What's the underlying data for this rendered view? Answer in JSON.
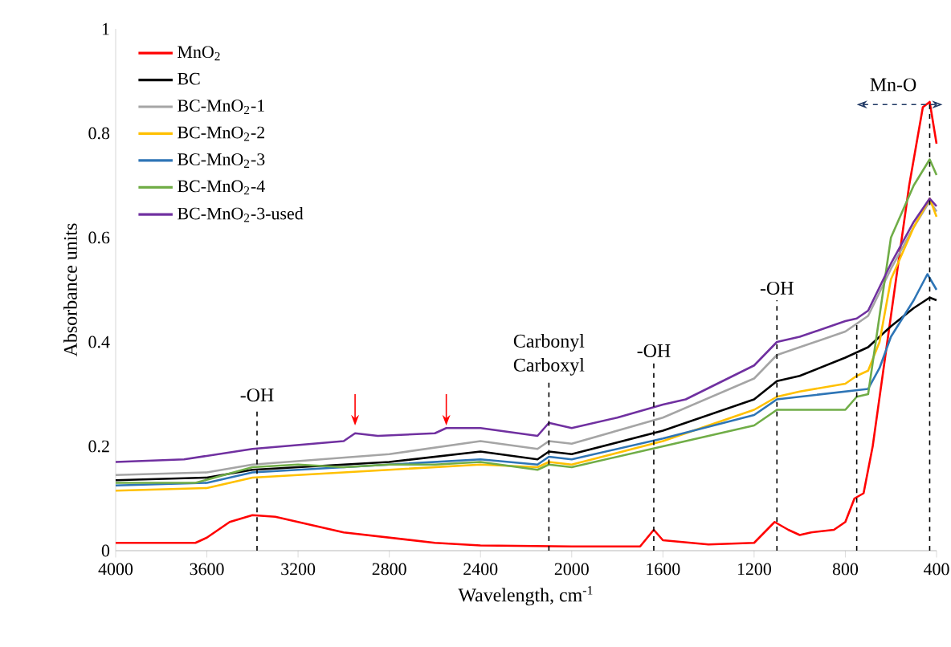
{
  "chart_data": {
    "type": "line",
    "xlabel": "Wavelength, cm$^{-1}$",
    "ylabel": "Absorbance units",
    "xlim": [
      4000,
      400
    ],
    "ylim": [
      0,
      1
    ],
    "xticks": [
      4000,
      3600,
      3200,
      2800,
      2400,
      2000,
      1600,
      1200,
      800,
      400
    ],
    "yticks": [
      0,
      0.2,
      0.4,
      0.6,
      0.8,
      1
    ],
    "legend": "top left",
    "marker": "none",
    "line_style": "solid",
    "grid": false,
    "series": [
      {
        "name": "MnO$_{2}$",
        "color": "#ff0000",
        "x": [
          4000,
          3650,
          3600,
          3500,
          3400,
          3300,
          3200,
          3000,
          2800,
          2600,
          2400,
          2000,
          1700,
          1640,
          1600,
          1400,
          1200,
          1110,
          1050,
          1000,
          950,
          850,
          800,
          760,
          720,
          680,
          600,
          520,
          460,
          430,
          400
        ],
        "values": [
          0.015,
          0.015,
          0.025,
          0.055,
          0.068,
          0.065,
          0.055,
          0.035,
          0.025,
          0.015,
          0.01,
          0.008,
          0.008,
          0.04,
          0.02,
          0.012,
          0.015,
          0.055,
          0.04,
          0.03,
          0.035,
          0.04,
          0.055,
          0.1,
          0.11,
          0.2,
          0.45,
          0.7,
          0.85,
          0.86,
          0.78
        ]
      },
      {
        "name": "BC",
        "color": "#000000",
        "x": [
          4000,
          3600,
          3400,
          2800,
          2400,
          2150,
          2100,
          2000,
          1600,
          1200,
          1100,
          1000,
          800,
          700,
          600,
          500,
          430,
          400
        ],
        "values": [
          0.135,
          0.14,
          0.155,
          0.17,
          0.19,
          0.175,
          0.19,
          0.185,
          0.23,
          0.29,
          0.325,
          0.335,
          0.37,
          0.39,
          0.43,
          0.465,
          0.485,
          0.48
        ]
      },
      {
        "name": "BC-MnO$_{2}$-1",
        "color": "#a5a5a5",
        "x": [
          4000,
          3600,
          3400,
          2800,
          2400,
          2150,
          2100,
          2000,
          1600,
          1200,
          1100,
          1000,
          800,
          700,
          600,
          500,
          430,
          400
        ],
        "values": [
          0.145,
          0.15,
          0.165,
          0.185,
          0.21,
          0.195,
          0.21,
          0.205,
          0.255,
          0.33,
          0.375,
          0.39,
          0.42,
          0.45,
          0.54,
          0.62,
          0.67,
          0.65
        ]
      },
      {
        "name": "BC-MnO$_{2}$-2",
        "color": "#ffc000",
        "x": [
          4000,
          3600,
          3400,
          2800,
          2400,
          2150,
          2100,
          2000,
          1600,
          1200,
          1100,
          1000,
          800,
          750,
          700,
          650,
          600,
          500,
          430,
          400
        ],
        "values": [
          0.115,
          0.12,
          0.14,
          0.155,
          0.165,
          0.16,
          0.17,
          0.165,
          0.21,
          0.27,
          0.295,
          0.305,
          0.32,
          0.335,
          0.345,
          0.4,
          0.52,
          0.62,
          0.675,
          0.64
        ]
      },
      {
        "name": "BC-MnO$_{2}$-3",
        "color": "#2e75b6",
        "x": [
          4000,
          3600,
          3400,
          2800,
          2400,
          2150,
          2100,
          2000,
          1600,
          1200,
          1100,
          1000,
          800,
          700,
          650,
          600,
          500,
          440,
          400
        ],
        "values": [
          0.125,
          0.13,
          0.15,
          0.165,
          0.175,
          0.165,
          0.18,
          0.175,
          0.215,
          0.26,
          0.29,
          0.295,
          0.305,
          0.31,
          0.35,
          0.41,
          0.48,
          0.53,
          0.5
        ]
      },
      {
        "name": "BC-MnO$_{2}$-4",
        "color": "#70ad47",
        "x": [
          4000,
          3650,
          3400,
          3200,
          3000,
          2800,
          2600,
          2400,
          2150,
          2100,
          2000,
          1600,
          1200,
          1100,
          1000,
          800,
          750,
          700,
          650,
          600,
          500,
          430,
          400
        ],
        "values": [
          0.13,
          0.13,
          0.16,
          0.165,
          0.16,
          0.165,
          0.165,
          0.17,
          0.155,
          0.165,
          0.16,
          0.2,
          0.24,
          0.27,
          0.27,
          0.27,
          0.295,
          0.3,
          0.45,
          0.6,
          0.7,
          0.75,
          0.72
        ]
      },
      {
        "name": "BC-MnO$_{2}$-3-used",
        "color": "#7030a0",
        "x": [
          4000,
          3700,
          3400,
          3000,
          2950,
          2850,
          2600,
          2550,
          2400,
          2150,
          2100,
          2000,
          1800,
          1600,
          1500,
          1200,
          1100,
          1000,
          800,
          750,
          700,
          600,
          500,
          430,
          400
        ],
        "values": [
          0.17,
          0.175,
          0.195,
          0.21,
          0.225,
          0.22,
          0.225,
          0.235,
          0.235,
          0.22,
          0.245,
          0.235,
          0.255,
          0.28,
          0.29,
          0.355,
          0.4,
          0.41,
          0.44,
          0.445,
          0.46,
          0.55,
          0.63,
          0.675,
          0.66
        ]
      }
    ],
    "ref_lines": [
      {
        "axis": "x",
        "value": 3380,
        "label": "-OH",
        "line_style": "dashed",
        "color": "#000000"
      },
      {
        "axis": "x",
        "value": 2100,
        "label": "Carbonyl Carboxyl",
        "line_style": "dashed",
        "color": "#000000"
      },
      {
        "axis": "x",
        "value": 1640,
        "label": "-OH",
        "line_style": "dashed",
        "color": "#000000"
      },
      {
        "axis": "x",
        "value": 1100,
        "label": "-OH",
        "line_style": "dashed",
        "color": "#000000"
      },
      {
        "axis": "x",
        "value": 750,
        "line_style": "dashed",
        "color": "#000000"
      },
      {
        "axis": "x",
        "value": 430,
        "line_style": "dashed",
        "color": "#000000"
      }
    ],
    "annotations": [
      "Mn-O"
    ]
  }
}
